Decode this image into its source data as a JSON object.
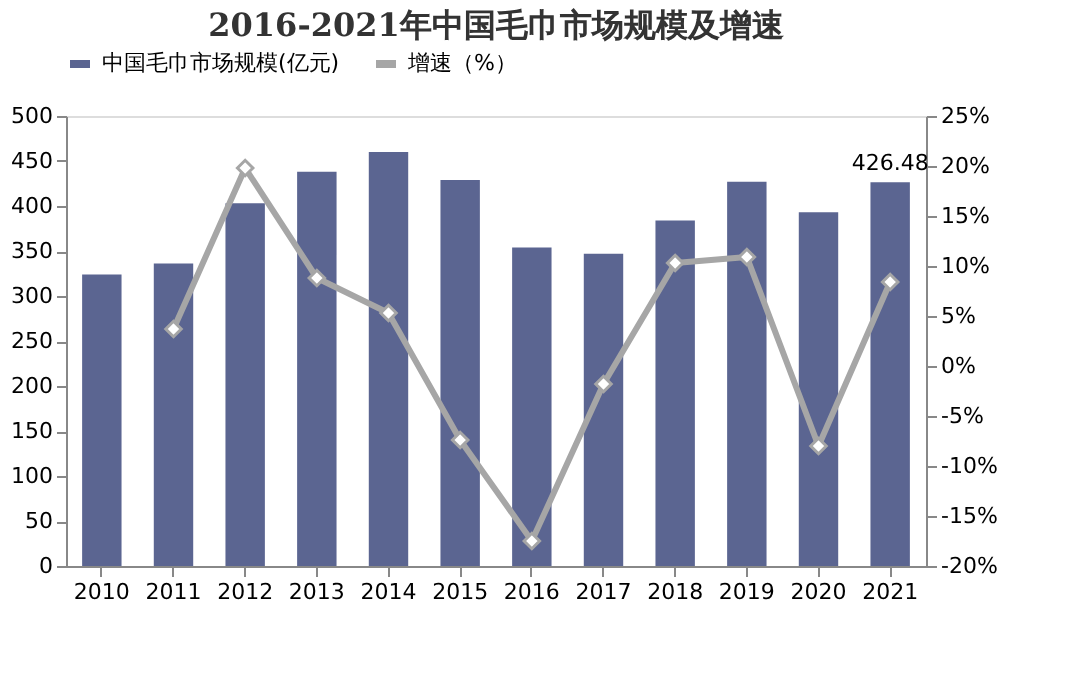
{
  "chart_data": {
    "type": "bar",
    "title": "2016-2021年中国毛巾市场规模及增速",
    "categories": [
      "2010",
      "2011",
      "2012",
      "2013",
      "2014",
      "2015",
      "2016",
      "2017",
      "2018",
      "2019",
      "2020",
      "2021"
    ],
    "series": [
      {
        "name": "中国毛巾市场规模(亿元)",
        "color": "#5b6591",
        "values": [
          324,
          336,
          403,
          438,
          460,
          429,
          354,
          347,
          384,
          427,
          393,
          426.48
        ],
        "value_labels": [
          null,
          null,
          null,
          null,
          null,
          null,
          null,
          null,
          null,
          null,
          null,
          "426.48"
        ]
      },
      {
        "name": "增速（%）",
        "type": "line",
        "axis": "y2",
        "color": "#a6a6a6",
        "marker": "diamond",
        "values": [
          null,
          3.7,
          19.8,
          8.8,
          5.3,
          -7.4,
          -17.5,
          -1.8,
          10.3,
          10.9,
          -8.0,
          8.4
        ]
      }
    ],
    "ylim": [
      0,
      500
    ],
    "yticks": [
      0,
      50,
      100,
      150,
      200,
      250,
      300,
      350,
      400,
      450,
      500
    ],
    "y2lim": [
      -20,
      25
    ],
    "y2ticks": [
      {
        "value": -20,
        "label": "-20%"
      },
      {
        "value": -15,
        "label": "-15%"
      },
      {
        "value": -10,
        "label": "-10%"
      },
      {
        "value": -5,
        "label": "-5%"
      },
      {
        "value": 0,
        "label": "0%"
      },
      {
        "value": 5,
        "label": "5%"
      },
      {
        "value": 10,
        "label": "10%"
      },
      {
        "value": 15,
        "label": "15%"
      },
      {
        "value": 20,
        "label": "20%"
      },
      {
        "value": 25,
        "label": "25%"
      }
    ],
    "grid": false,
    "legend": "top"
  }
}
